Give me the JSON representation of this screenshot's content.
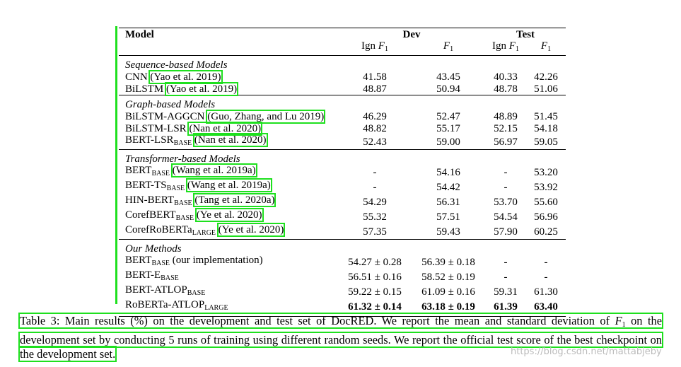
{
  "table": {
    "header": {
      "model": "Model",
      "dev": "Dev",
      "test": "Test",
      "columns": [
        {
          "pre": "Ign ",
          "var": "F",
          "sub": "1"
        },
        {
          "var": "F",
          "sub": "1"
        },
        {
          "pre": "Ign ",
          "var": "F",
          "sub": "1"
        },
        {
          "var": "F",
          "sub": "1"
        }
      ]
    },
    "groups": [
      {
        "title": "Sequence-based Models",
        "rows": [
          {
            "model": {
              "name": "CNN",
              "cite": "(Yao et al. 2019)"
            },
            "cells": [
              "41.58",
              "43.45",
              "40.33",
              "42.26"
            ]
          },
          {
            "model": {
              "name": "BiLSTM",
              "cite": "(Yao et al. 2019)"
            },
            "cells": [
              "48.87",
              "50.94",
              "48.78",
              "51.06"
            ]
          }
        ]
      },
      {
        "title": "Graph-based Models",
        "rows": [
          {
            "model": {
              "name": "BiLSTM-AGGCN",
              "cite": "(Guo, Zhang, and Lu 2019)"
            },
            "cells": [
              "46.29",
              "52.47",
              "48.89",
              "51.45"
            ]
          },
          {
            "model": {
              "name": "BiLSTM-LSR",
              "cite": "(Nan et al. 2020)"
            },
            "cells": [
              "48.82",
              "55.17",
              "52.15",
              "54.18"
            ]
          },
          {
            "model": {
              "name": "BERT-LSR",
              "sub": "BASE",
              "cite": "(Nan et al. 2020)"
            },
            "cells": [
              "52.43",
              "59.00",
              "56.97",
              "59.05"
            ]
          }
        ]
      },
      {
        "title": "Transformer-based Models",
        "rows": [
          {
            "model": {
              "name": "BERT",
              "sub": "BASE",
              "cite": "(Wang et al. 2019a)"
            },
            "cells": [
              "-",
              "54.16",
              "-",
              "53.20"
            ]
          },
          {
            "model": {
              "name": "BERT-TS",
              "sub": "BASE",
              "cite": "(Wang et al. 2019a)"
            },
            "cells": [
              "-",
              "54.42",
              "-",
              "53.92"
            ]
          },
          {
            "model": {
              "name": "HIN-BERT",
              "sub": "BASE",
              "cite": "(Tang et al. 2020a)"
            },
            "cells": [
              "54.29",
              "56.31",
              "53.70",
              "55.60"
            ]
          },
          {
            "model": {
              "name": "CorefBERT",
              "sub": "BASE",
              "cite": "(Ye et al. 2020)"
            },
            "cells": [
              "55.32",
              "57.51",
              "54.54",
              "56.96"
            ]
          },
          {
            "model": {
              "name": "CorefRoBERTa",
              "sub": "LARGE",
              "cite": "(Ye et al. 2020)"
            },
            "cells": [
              "57.35",
              "59.43",
              "57.90",
              "60.25"
            ]
          }
        ]
      },
      {
        "title": "Our Methods",
        "rows": [
          {
            "model": {
              "name": "BERT",
              "sub": "BASE",
              "rest": " (our implementation)"
            },
            "cells": [
              "54.27 ± 0.28",
              "56.39 ± 0.18",
              "-",
              "-"
            ]
          },
          {
            "model": {
              "name": "BERT-E",
              "sub": "BASE"
            },
            "cells": [
              "56.51 ± 0.16",
              "58.52 ± 0.19",
              "-",
              "-"
            ]
          },
          {
            "model": {
              "name": "BERT-ATLOP",
              "sub": "BASE"
            },
            "cells": [
              "59.22 ± 0.15",
              "61.09 ± 0.16",
              "59.31",
              "61.30"
            ]
          },
          {
            "model": {
              "name": "RoBERTa-ATLOP",
              "sub": "LARGE"
            },
            "cells": [
              "61.32 ± 0.14",
              "63.18 ± 0.19",
              "61.39",
              "63.40"
            ],
            "bold": true
          }
        ]
      }
    ]
  },
  "caption": {
    "before": "Table 3: Main results (%) on the development and test set of DocRED. We report the mean and standard deviation of ",
    "var": "F",
    "sub": "1",
    "after": " on the development set by conducting 5 runs of training using different random seeds. We report the official test score of the best checkpoint on the development set."
  },
  "watermark": "https://blog.csdn.net/mattabjeby"
}
